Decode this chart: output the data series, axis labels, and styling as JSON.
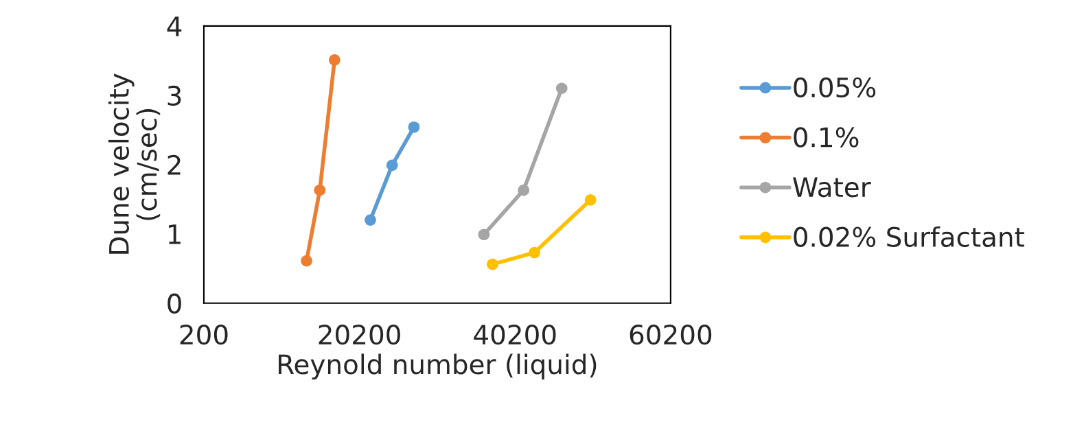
{
  "chart_data": {
    "type": "line",
    "xlabel": "Reynold number (liquid)",
    "ylabel": "Dune velocity\n(cm/sec)",
    "xlim": [
      200,
      60200
    ],
    "xticks": [
      200,
      20200,
      40200,
      60200
    ],
    "ylim": [
      0,
      4
    ],
    "yticks": [
      0,
      1,
      2,
      3,
      4
    ],
    "grid": false,
    "legend": "right",
    "marker": "circle",
    "line_style": "solid",
    "series": [
      {
        "name": "0.05%",
        "color": "#5b9bd5",
        "x": [
          21600,
          24400,
          27200
        ],
        "values": [
          1.2,
          1.99,
          2.54
        ]
      },
      {
        "name": "0.1%",
        "color": "#ed7d31",
        "x": [
          13400,
          15100,
          17000
        ],
        "values": [
          0.61,
          1.63,
          3.51
        ]
      },
      {
        "name": "Water",
        "color": "#a5a5a5",
        "x": [
          36200,
          41300,
          46200
        ],
        "values": [
          0.99,
          1.63,
          3.1
        ]
      },
      {
        "name": "0.02% Surfactant",
        "color": "#ffc000",
        "x": [
          37300,
          42700,
          49900
        ],
        "values": [
          0.56,
          0.73,
          1.49
        ]
      }
    ]
  }
}
